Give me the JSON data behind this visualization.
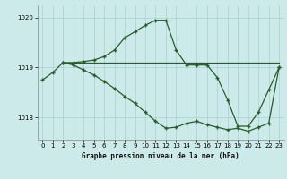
{
  "title": "Graphe pression niveau de la mer (hPa)",
  "bg_color": "#cceaea",
  "line_color": "#2a5c2a",
  "grid_color": "#aacfcf",
  "ylim": [
    1017.55,
    1020.25
  ],
  "xlim": [
    -0.5,
    23.5
  ],
  "yticks": [
    1018,
    1019,
    1020
  ],
  "xticks": [
    0,
    1,
    2,
    3,
    4,
    5,
    6,
    7,
    8,
    9,
    10,
    11,
    12,
    13,
    14,
    15,
    16,
    17,
    18,
    19,
    20,
    21,
    22,
    23
  ],
  "line1_x": [
    0,
    1,
    2,
    3,
    4,
    5,
    6,
    7,
    8,
    9,
    10,
    11,
    12,
    13,
    14,
    15,
    16,
    17,
    18,
    19,
    20,
    21,
    22,
    23
  ],
  "line1_y": [
    1018.75,
    1018.9,
    1019.1,
    1019.1,
    1019.12,
    1019.15,
    1019.22,
    1019.35,
    1019.6,
    1019.72,
    1019.85,
    1019.95,
    1019.95,
    1019.35,
    1019.05,
    1019.05,
    1019.05,
    1018.8,
    1018.35,
    1017.82,
    1017.82,
    1018.1,
    1018.55,
    1019.0
  ],
  "line2_x": [
    2,
    3,
    4,
    5,
    6,
    7,
    8,
    9,
    10,
    11,
    12,
    13,
    14,
    15,
    16,
    17,
    18,
    19,
    20,
    21,
    22,
    23
  ],
  "line2_y": [
    1019.1,
    1019.1,
    1019.1,
    1019.1,
    1019.1,
    1019.1,
    1019.1,
    1019.1,
    1019.1,
    1019.1,
    1019.1,
    1019.1,
    1019.1,
    1019.1,
    1019.1,
    1019.1,
    1019.1,
    1019.1,
    1019.1,
    1019.1,
    1019.1,
    1019.1
  ],
  "line3_x": [
    2,
    3,
    4,
    5,
    6,
    7,
    8,
    9,
    10,
    11,
    12,
    13,
    14,
    15,
    16,
    17,
    18,
    19,
    20,
    21,
    22,
    23
  ],
  "line3_y": [
    1019.1,
    1019.05,
    1018.95,
    1018.85,
    1018.72,
    1018.58,
    1018.42,
    1018.28,
    1018.1,
    1017.92,
    1017.78,
    1017.8,
    1017.88,
    1017.92,
    1017.85,
    1017.8,
    1017.75,
    1017.78,
    1017.72,
    1017.8,
    1017.88,
    1019.0
  ]
}
